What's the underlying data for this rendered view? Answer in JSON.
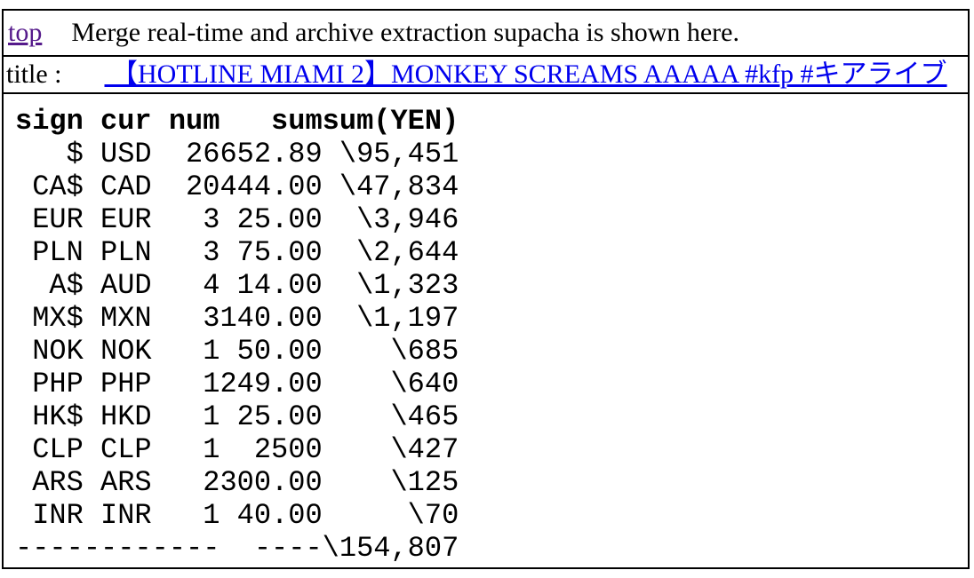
{
  "header": {
    "top_link": "top",
    "description": "Merge real-time and archive extraction supacha is shown here."
  },
  "title_row": {
    "label": "title :",
    "link": " 【HOTLINE MIAMI 2】MONKEY SCREAMS AAAAA #kfp #キアライブ"
  },
  "table": {
    "columns": [
      "sign",
      "cur",
      "num",
      "sum",
      "sum(YEN)"
    ],
    "rows": [
      [
        "$",
        "USD",
        "26",
        "652.89",
        "\\95,451"
      ],
      [
        "CA$",
        "CAD",
        "20",
        "444.00",
        "\\47,834"
      ],
      [
        "EUR",
        "EUR",
        "3",
        "25.00",
        "\\3,946"
      ],
      [
        "PLN",
        "PLN",
        "3",
        "75.00",
        "\\2,644"
      ],
      [
        "A$",
        "AUD",
        "4",
        "14.00",
        "\\1,323"
      ],
      [
        "MX$",
        "MXN",
        "3",
        "140.00",
        "\\1,197"
      ],
      [
        "NOK",
        "NOK",
        "1",
        "50.00",
        "\\685"
      ],
      [
        "PHP",
        "PHP",
        "1",
        "249.00",
        "\\640"
      ],
      [
        "HK$",
        "HKD",
        "1",
        "25.00",
        "\\465"
      ],
      [
        "CLP",
        "CLP",
        "1",
        "2500",
        "\\427"
      ],
      [
        "ARS",
        "ARS",
        "2",
        "300.00",
        "\\125"
      ],
      [
        "INR",
        "INR",
        "1",
        "40.00",
        "\\70"
      ]
    ],
    "total_row": [
      "----",
      "----",
      "----",
      "----",
      "\\154,807"
    ]
  },
  "colors": {
    "title_link_blue": "#0000EE",
    "visited_link_purple": "#551A8B",
    "border_black": "#000000",
    "background": "#FFFFFF"
  }
}
